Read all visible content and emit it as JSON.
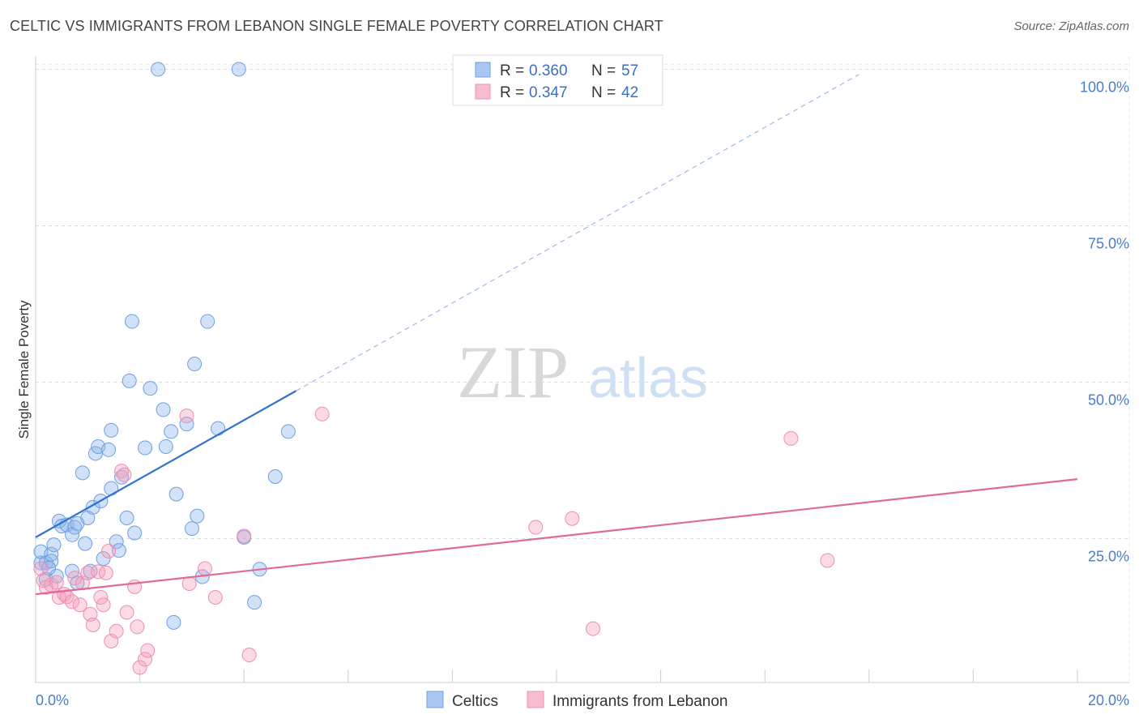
{
  "chart_data": {
    "type": "scatter",
    "title": "CELTIC VS IMMIGRANTS FROM LEBANON SINGLE FEMALE POVERTY CORRELATION CHART",
    "source": "Source: ZipAtlas.com",
    "watermark": {
      "zip": "ZIP",
      "atlas": "atlas"
    },
    "ylabel": "Single Female Poverty",
    "x_ticks": [
      "0.0%",
      "20.0%"
    ],
    "y_ticks": [
      {
        "value": 100,
        "label": "100.0%"
      },
      {
        "value": 75,
        "label": "75.0%"
      },
      {
        "value": 50,
        "label": "50.0%"
      },
      {
        "value": 25,
        "label": "25.0%"
      }
    ],
    "xlim": [
      0,
      20
    ],
    "ylim": [
      2,
      102
    ],
    "grid": true,
    "legend": {
      "position": "top-center",
      "items": [
        {
          "r_label": "R =",
          "r_value": "0.360",
          "n_label": "N =",
          "n_value": "57",
          "color": "#a9c7f0",
          "edge": "#6e9fe0"
        },
        {
          "r_label": "R =",
          "r_value": "0.347",
          "n_label": "N =",
          "n_value": "42",
          "color": "#f8bcd0",
          "edge": "#ef8fb0"
        }
      ]
    },
    "bottom_legend": [
      "Celtics",
      "Immigrants from Lebanon"
    ],
    "series": [
      {
        "name": "Celtics",
        "fill": "rgba(140,180,235,0.40)",
        "stroke": "#6f9fe0",
        "trend": {
          "x0": 0,
          "y0": 25.2,
          "x1": 5.0,
          "y1": 48.6,
          "color": "#2f72d0",
          "dash_to_x": 15.8
        },
        "points": [
          [
            0.1,
            21.1
          ],
          [
            0.1,
            22.9
          ],
          [
            0.2,
            21.1
          ],
          [
            0.2,
            18.5
          ],
          [
            0.3,
            22.5
          ],
          [
            0.3,
            21.4
          ],
          [
            0.35,
            24.0
          ],
          [
            0.4,
            19.0
          ],
          [
            0.45,
            27.8
          ],
          [
            0.5,
            27.0
          ],
          [
            0.6,
            27.2
          ],
          [
            0.7,
            19.8
          ],
          [
            0.7,
            25.6
          ],
          [
            0.75,
            26.8
          ],
          [
            0.8,
            27.4
          ],
          [
            0.8,
            17.9
          ],
          [
            0.9,
            35.5
          ],
          [
            0.95,
            24.2
          ],
          [
            1.0,
            28.3
          ],
          [
            1.05,
            19.8
          ],
          [
            1.1,
            30.0
          ],
          [
            1.15,
            38.6
          ],
          [
            1.2,
            39.7
          ],
          [
            1.25,
            31.0
          ],
          [
            1.3,
            21.8
          ],
          [
            1.4,
            39.2
          ],
          [
            1.45,
            33.0
          ],
          [
            1.45,
            42.3
          ],
          [
            1.55,
            24.5
          ],
          [
            1.6,
            23.1
          ],
          [
            1.65,
            34.8
          ],
          [
            1.75,
            28.3
          ],
          [
            1.8,
            50.2
          ],
          [
            1.85,
            59.7
          ],
          [
            1.9,
            25.9
          ],
          [
            2.1,
            39.5
          ],
          [
            2.2,
            49.0
          ],
          [
            2.35,
            100.0
          ],
          [
            2.45,
            45.6
          ],
          [
            2.5,
            39.7
          ],
          [
            2.6,
            42.1
          ],
          [
            2.65,
            11.6
          ],
          [
            2.7,
            32.1
          ],
          [
            2.9,
            43.3
          ],
          [
            3.0,
            26.6
          ],
          [
            3.05,
            52.9
          ],
          [
            3.1,
            28.6
          ],
          [
            3.2,
            18.9
          ],
          [
            3.3,
            59.7
          ],
          [
            3.5,
            42.6
          ],
          [
            3.9,
            100.0
          ],
          [
            4.0,
            25.2
          ],
          [
            4.2,
            14.8
          ],
          [
            4.3,
            20.1
          ],
          [
            4.6,
            34.9
          ],
          [
            4.85,
            42.1
          ],
          [
            0.25,
            20.3
          ]
        ]
      },
      {
        "name": "Immigrants from Lebanon",
        "fill": "rgba(245,160,190,0.40)",
        "stroke": "#ec8fb2",
        "trend": {
          "x0": 0,
          "y0": 16.1,
          "x1": 20.0,
          "y1": 34.5,
          "color": "#e06a98"
        },
        "points": [
          [
            0.1,
            20.2
          ],
          [
            0.15,
            18.3
          ],
          [
            0.2,
            17.2
          ],
          [
            0.3,
            17.6
          ],
          [
            0.4,
            18.0
          ],
          [
            0.45,
            15.6
          ],
          [
            0.55,
            16.1
          ],
          [
            0.6,
            15.7
          ],
          [
            0.7,
            14.9
          ],
          [
            0.75,
            18.7
          ],
          [
            0.85,
            14.4
          ],
          [
            0.9,
            17.9
          ],
          [
            1.0,
            19.5
          ],
          [
            1.05,
            12.9
          ],
          [
            1.1,
            11.2
          ],
          [
            1.2,
            19.7
          ],
          [
            1.25,
            15.6
          ],
          [
            1.3,
            14.4
          ],
          [
            1.35,
            19.5
          ],
          [
            1.4,
            23.0
          ],
          [
            1.45,
            8.6
          ],
          [
            1.55,
            10.2
          ],
          [
            1.65,
            35.8
          ],
          [
            1.7,
            35.2
          ],
          [
            1.75,
            13.2
          ],
          [
            1.9,
            17.3
          ],
          [
            1.95,
            10.9
          ],
          [
            2.0,
            4.4
          ],
          [
            2.1,
            5.7
          ],
          [
            2.15,
            7.1
          ],
          [
            2.9,
            44.6
          ],
          [
            2.95,
            17.8
          ],
          [
            3.25,
            20.2
          ],
          [
            3.45,
            15.6
          ],
          [
            4.0,
            25.4
          ],
          [
            4.1,
            6.4
          ],
          [
            5.5,
            44.9
          ],
          [
            9.6,
            26.8
          ],
          [
            10.3,
            28.2
          ],
          [
            10.7,
            10.6
          ],
          [
            14.5,
            41.0
          ],
          [
            15.2,
            21.5
          ]
        ]
      }
    ]
  }
}
